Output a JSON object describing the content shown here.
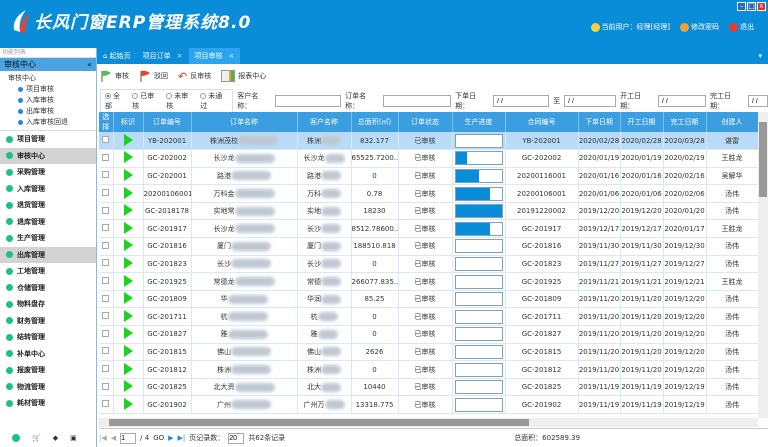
{
  "app": {
    "title": "长风门窗ERP管理系统8.0",
    "user": "当前用户：经理[经理]",
    "change_password": "修改密码",
    "logout": "退出"
  },
  "sidebar": {
    "caption": "功能列表",
    "section": "审核中心",
    "tree_root": "审核中心",
    "tree_items": [
      "项目审核",
      "入库审核",
      "出库审核",
      "入库审核回退"
    ],
    "menu": [
      {
        "label": "项目管理"
      },
      {
        "label": "审核中心",
        "selected": true
      },
      {
        "label": "采购管理"
      },
      {
        "label": "入库管理"
      },
      {
        "label": "退货管理"
      },
      {
        "label": "退库管理"
      },
      {
        "label": "生产管理"
      },
      {
        "label": "出库管理",
        "selected": true
      },
      {
        "label": "工地管理"
      },
      {
        "label": "仓储管理"
      },
      {
        "label": "物料盘存"
      },
      {
        "label": "财务管理"
      },
      {
        "label": "结转管理"
      },
      {
        "label": "补单中心"
      },
      {
        "label": "报废管理"
      },
      {
        "label": "物流管理"
      },
      {
        "label": "耗材管理"
      }
    ]
  },
  "tabs": [
    {
      "label": "起始页"
    },
    {
      "label": "项目订单",
      "close": "×"
    },
    {
      "label": "项目审核",
      "close": "×",
      "active": true
    }
  ],
  "toolbar": {
    "approve": "审核",
    "reject": "驳回",
    "unapprove": "反审核",
    "report": "报表中心"
  },
  "filter": {
    "radios": [
      "全部",
      "已审核",
      "未审核",
      "未通过"
    ],
    "selected": "全部",
    "customer_label": "客户名称：",
    "order_label": "订单名称：",
    "order_date_label": "下单日期：",
    "to": "至",
    "start_date_label": "开工日期：",
    "finish_date_label": "完工日期：",
    "date_placeholder": "/ /"
  },
  "grid": {
    "columns": [
      "选择",
      "标识",
      "订单编号",
      "订单名称",
      "客户名称",
      "总面积(㎡)",
      "订单状态",
      "生产进度",
      "合同编号",
      "下单日期",
      "开工日期",
      "完工日期",
      "创建人"
    ],
    "rows": [
      [
        "YB-202001",
        "株洲茂校",
        "株洲",
        "832.177",
        "已审核",
        0,
        "YB-202001",
        "2020/02/28",
        "2020/02/28",
        "2020/03/28",
        "谌雷"
      ],
      [
        "GC-202002",
        "长沙龙",
        "长沙龙",
        "65525.7200...",
        "已审核",
        25,
        "GC-202002",
        "2020/01/19",
        "2020/01/19",
        "2020/02/19",
        "王胜龙"
      ],
      [
        "GC-202001",
        "路港",
        "路港",
        "0",
        "已审核",
        50,
        "20200116001",
        "2020/01/16",
        "2020/01/16",
        "2020/02/16",
        "吴解华"
      ],
      [
        "20200106001",
        "万科金",
        "万科",
        "0.78",
        "已审核",
        75,
        "20200106001",
        "2020/01/06",
        "2020/01/06",
        "2020/02/06",
        "汤伟"
      ],
      [
        "GC-2018178",
        "实地常",
        "实地",
        "18230",
        "已审核",
        100,
        "20191220002",
        "2019/12/20",
        "2019/12/20",
        "2020/01/20",
        "汤伟"
      ],
      [
        "GC-201917",
        "长沙龙",
        "长沙",
        "8512.78600...",
        "已审核",
        75,
        "GC-201917",
        "2019/12/17",
        "2019/12/17",
        "2020/01/17",
        "王胜龙"
      ],
      [
        "GC-201816",
        "厦门",
        "厦门",
        "188510.818",
        "已审核",
        0,
        "GC-201816",
        "2019/11/30",
        "2019/11/30",
        "2019/12/30",
        "汤伟"
      ],
      [
        "GC-201823",
        "长沙",
        "长沙",
        "0",
        "已审核",
        0,
        "GC-201823",
        "2019/11/27",
        "2019/11/27",
        "2019/12/27",
        "汤伟"
      ],
      [
        "GC-201925",
        "常德龙",
        "常德",
        "266077.835...",
        "已审核",
        0,
        "GC-201925",
        "2019/11/21",
        "2019/11/21",
        "2019/12/21",
        "王胜龙"
      ],
      [
        "GC-201809",
        "华",
        "华润",
        "85.25",
        "已审核",
        0,
        "GC-201809",
        "2019/11/20",
        "2019/11/20",
        "2019/12/20",
        "汤伟"
      ],
      [
        "GC-201711",
        "杭",
        "杭",
        "0",
        "已审核",
        0,
        "GC-201711",
        "2019/11/20",
        "2019/11/20",
        "2019/12/20",
        "汤伟"
      ],
      [
        "GC-201827",
        "雅",
        "雅",
        "0",
        "已审核",
        0,
        "GC-201827",
        "2019/11/20",
        "2019/11/20",
        "2019/12/20",
        "汤伟"
      ],
      [
        "GC-201815",
        "佛山",
        "佛山",
        "2626",
        "已审核",
        0,
        "GC-201815",
        "2019/11/20",
        "2019/11/20",
        "2019/12/20",
        "汤伟"
      ],
      [
        "GC-201812",
        "株洲",
        "株洲",
        "0",
        "已审核",
        0,
        "GC-201812",
        "2019/11/20",
        "2019/11/20",
        "2019/12/20",
        "汤伟"
      ],
      [
        "GC-201825",
        "北大资",
        "北大",
        "10440",
        "已审核",
        0,
        "GC-201825",
        "2019/11/19",
        "2019/11/19",
        "2019/12/19",
        "汤伟"
      ],
      [
        "GC-201902",
        "广州",
        "广州万",
        "13318.775",
        "已审核",
        0,
        "GC-201902",
        "2019/11/19",
        "2019/11/19",
        "2019/12/19",
        "汤伟"
      ]
    ]
  },
  "pager": {
    "page": "1",
    "of": "/ 4",
    "go": "GO",
    "page_size_label": "页记录数：",
    "page_size": "20",
    "total": "共62条记录",
    "total_area": "总面积：602589.39"
  },
  "colors": {
    "header": "#0a8dd8",
    "selected_row": "#b9dbf7",
    "progress": "#0a8dd8",
    "status_marker": "#1ed31e"
  }
}
